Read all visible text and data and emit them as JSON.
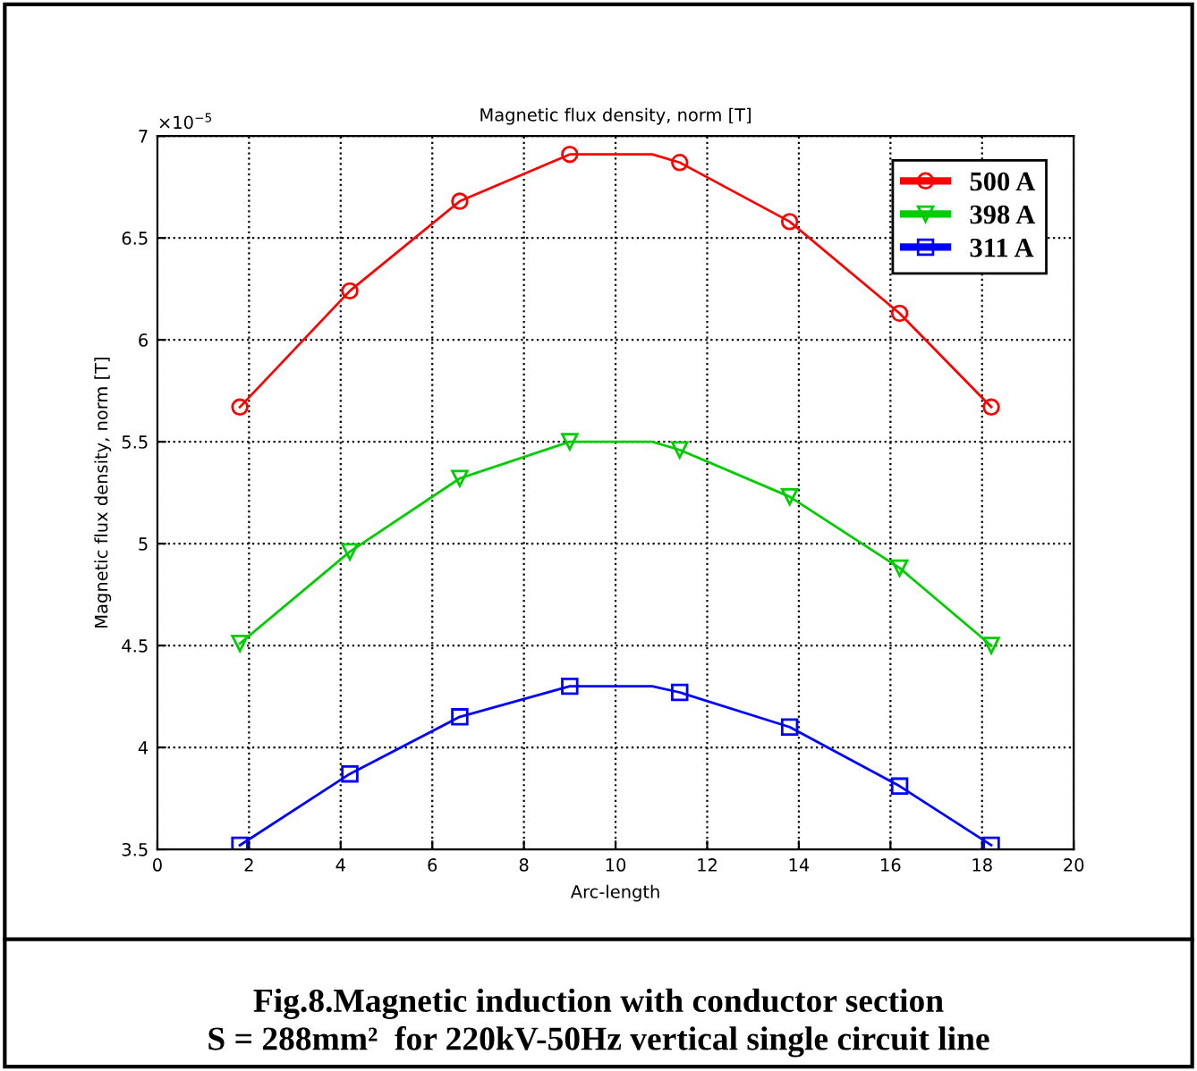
{
  "chart_data": {
    "type": "line",
    "title": "Magnetic flux density, norm [T]",
    "xlabel": "Arc-length",
    "ylabel": "Magnetic flux density, norm [T]",
    "x": [
      1.8,
      4.2,
      6.6,
      9.0,
      10.8,
      11.4,
      13.8,
      16.2,
      18.2
    ],
    "series": [
      {
        "name": "500 A",
        "color": "#ff0000",
        "marker": "circle",
        "values": [
          5.67,
          6.24,
          6.68,
          6.91,
          6.91,
          6.87,
          6.58,
          6.13,
          5.67
        ]
      },
      {
        "name": "398 A",
        "color": "#00cc00",
        "marker": "triangle",
        "values": [
          4.51,
          4.96,
          5.32,
          5.5,
          5.5,
          5.46,
          5.23,
          4.88,
          4.5
        ]
      },
      {
        "name": "311 A",
        "color": "#0000ff",
        "marker": "square",
        "values": [
          3.52,
          3.87,
          4.15,
          4.3,
          4.3,
          4.27,
          4.1,
          3.81,
          3.52
        ]
      }
    ],
    "xlim": [
      0,
      20
    ],
    "xticks": [
      0,
      2,
      4,
      6,
      8,
      10,
      12,
      14,
      16,
      18,
      20
    ],
    "ylim": [
      3.5,
      7
    ],
    "yticks": [
      3.5,
      4,
      4.5,
      5,
      5.5,
      6,
      6.5,
      7
    ],
    "annotations": [
      "×10$^{−5}$",
      "Fig.8.Magnetic induction with conductor section\nS = 288mm²  for 220kV-50Hz vertical single circuit line"
    ],
    "grid": true,
    "legend": "top right",
    "line_style": "solid"
  }
}
